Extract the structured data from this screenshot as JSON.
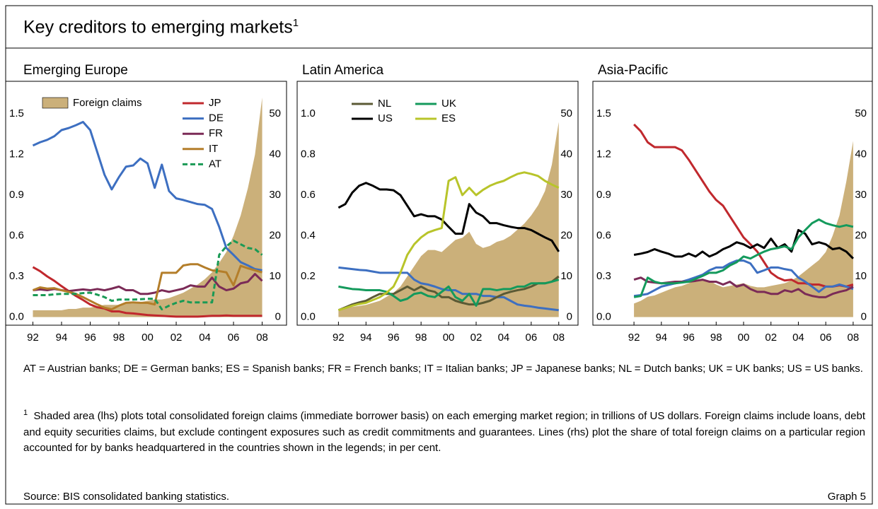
{
  "title": "Key creditors to emerging markets",
  "footnote_marker": "1",
  "chart_data": [
    {
      "type": "line",
      "title": "Emerging Europe",
      "x": [
        1992,
        1992.5,
        1993,
        1993.5,
        1994,
        1994.5,
        1995,
        1995.5,
        1996,
        1996.5,
        1997,
        1997.5,
        1998,
        1998.5,
        1999,
        1999.5,
        2000,
        2000.5,
        2001,
        2001.5,
        2002,
        2002.5,
        2003,
        2003.5,
        2004,
        2004.5,
        2005,
        2005.5,
        2006,
        2006.5,
        2007,
        2007.5,
        2008
      ],
      "xlim": [
        1990.1,
        2009.7
      ],
      "xticks": [
        {
          "value": 1992,
          "label": "92"
        },
        {
          "value": 1994,
          "label": "94"
        },
        {
          "value": 1996,
          "label": "96"
        },
        {
          "value": 1998,
          "label": "98"
        },
        {
          "value": 2000,
          "label": "00"
        },
        {
          "value": 2002,
          "label": "02"
        },
        {
          "value": 2004,
          "label": "04"
        },
        {
          "value": 2006,
          "label": "06"
        },
        {
          "value": 2008,
          "label": "08"
        }
      ],
      "ylim": [
        -0.06,
        1.74
      ],
      "yticks": [
        {
          "value": 0,
          "label": "0.0"
        },
        0.3,
        0.6,
        0.9,
        1.2,
        1.5
      ],
      "y2lim": [
        -2,
        58
      ],
      "y2ticks": [
        0,
        10,
        20,
        30,
        40,
        50
      ],
      "series": [
        {
          "name": "Foreign claims",
          "type": "area",
          "color": "#cbb07a",
          "values": [
            0.05,
            0.05,
            0.05,
            0.05,
            0.05,
            0.06,
            0.06,
            0.07,
            0.07,
            0.08,
            0.09,
            0.09,
            0.09,
            0.1,
            0.1,
            0.11,
            0.12,
            0.13,
            0.13,
            0.14,
            0.16,
            0.18,
            0.21,
            0.24,
            0.28,
            0.33,
            0.4,
            0.48,
            0.6,
            0.75,
            0.95,
            1.2,
            1.62
          ]
        },
        {
          "name": "JP",
          "axis": "y2",
          "color": "#c0282d",
          "values": [
            12.3,
            11.3,
            10,
            8.9,
            7.6,
            6.4,
            5.2,
            4.2,
            3.1,
            2.4,
            2.1,
            1.4,
            1.4,
            1,
            0.9,
            0.7,
            0.5,
            0.4,
            0.3,
            0.2,
            0.1,
            0.1,
            0.1,
            0.1,
            0.2,
            0.3,
            0.3,
            0.4,
            0.3,
            0.3,
            0.3,
            0.3,
            0.3
          ]
        },
        {
          "name": "DE",
          "axis": "y2",
          "color": "#3d6fc1",
          "values": [
            42.2,
            43,
            43.6,
            44.5,
            46,
            46.5,
            47.2,
            48,
            46,
            40.5,
            35,
            31.4,
            34.4,
            37,
            37.3,
            39,
            37.8,
            31.8,
            37.5,
            31,
            29.2,
            28.8,
            28.3,
            27.8,
            27.6,
            26.6,
            22.2,
            17,
            15.3,
            13.5,
            12.7,
            11.8,
            11.5
          ]
        },
        {
          "name": "FR",
          "axis": "y2",
          "color": "#7b2b57",
          "values": [
            6.6,
            6.8,
            6.6,
            6.9,
            6.6,
            6.4,
            6.6,
            6.8,
            6.6,
            6.9,
            6.6,
            7,
            7.5,
            6.6,
            6.6,
            5.7,
            5.7,
            6,
            6.6,
            6.2,
            6.6,
            7,
            7.8,
            7.5,
            7.5,
            9.7,
            7.5,
            6.6,
            7,
            8.3,
            8.7,
            10.6,
            8.9
          ]
        },
        {
          "name": "IT",
          "axis": "y2",
          "color": "#b47e2a",
          "values": [
            6.6,
            7.3,
            7,
            7.1,
            6.6,
            6.2,
            5.7,
            4.9,
            4,
            3.1,
            2.3,
            1.9,
            2.8,
            3.5,
            3.6,
            3.5,
            3.5,
            3.1,
            10.9,
            10.9,
            10.9,
            12.7,
            13,
            13,
            12.2,
            11.5,
            11.3,
            11,
            7.8,
            12.6,
            12,
            11.5,
            11
          ]
        },
        {
          "name": "AT",
          "axis": "y2",
          "color": "#1a9a55",
          "dash": true,
          "values": [
            5.4,
            5.4,
            5.4,
            5.6,
            5.7,
            5.7,
            5.7,
            5.9,
            6,
            5.5,
            4.9,
            4,
            4.3,
            4.3,
            4.3,
            4.4,
            4.5,
            4.5,
            1.9,
            2.8,
            3.5,
            4,
            3.6,
            3.6,
            3.6,
            3.6,
            15.3,
            17.4,
            18.8,
            17.9,
            17,
            16.7,
            15.3
          ]
        }
      ]
    },
    {
      "type": "line",
      "title": "Latin America",
      "x": [
        1992,
        1992.5,
        1993,
        1993.5,
        1994,
        1994.5,
        1995,
        1995.5,
        1996,
        1996.5,
        1997,
        1997.5,
        1998,
        1998.5,
        1999,
        1999.5,
        2000,
        2000.5,
        2001,
        2001.5,
        2002,
        2002.5,
        2003,
        2003.5,
        2004,
        2004.5,
        2005,
        2005.5,
        2006,
        2006.5,
        2007,
        2007.5,
        2008
      ],
      "xlim": [
        1989,
        2009.4
      ],
      "xticks": [
        {
          "value": 1992,
          "label": "92"
        },
        {
          "value": 1994,
          "label": "94"
        },
        {
          "value": 1996,
          "label": "96"
        },
        {
          "value": 1998,
          "label": "98"
        },
        {
          "value": 2000,
          "label": "00"
        },
        {
          "value": 2002,
          "label": "02"
        },
        {
          "value": 2004,
          "label": "04"
        },
        {
          "value": 2006,
          "label": "06"
        },
        {
          "value": 2008,
          "label": "08"
        }
      ],
      "ylim": [
        -0.04,
        1.16
      ],
      "yticks": [
        {
          "value": 0,
          "label": "0.0"
        },
        0.2,
        0.4,
        0.6,
        0.8,
        {
          "value": 1,
          "label": "1.0"
        }
      ],
      "y2lim": [
        -2,
        58
      ],
      "y2ticks": [
        0,
        10,
        20,
        30,
        40,
        50
      ],
      "series": [
        {
          "type": "area",
          "color": "#cbb07a",
          "values": [
            0.04,
            0.045,
            0.05,
            0.055,
            0.06,
            0.07,
            0.08,
            0.1,
            0.12,
            0.15,
            0.2,
            0.25,
            0.3,
            0.33,
            0.33,
            0.32,
            0.35,
            0.38,
            0.39,
            0.42,
            0.36,
            0.34,
            0.35,
            0.37,
            0.38,
            0.4,
            0.43,
            0.46,
            0.5,
            0.55,
            0.62,
            0.75,
            0.96
          ]
        },
        {
          "axis": "y2",
          "color": "#3d6fc1",
          "values": [
            12.2,
            12,
            11.8,
            11.6,
            11.5,
            11.2,
            10.9,
            10.9,
            10.9,
            10.9,
            10.9,
            9.2,
            8.3,
            8,
            7.5,
            6.9,
            6.6,
            6.6,
            5.7,
            5.7,
            5.7,
            5.2,
            5.2,
            4.9,
            4.9,
            4,
            3.1,
            2.8,
            2.6,
            2.3,
            2.1,
            1.9,
            1.7
          ]
        },
        {
          "name": "NL",
          "axis": "y2",
          "color": "#5b5a35",
          "values": [
            1.7,
            2.4,
            3.1,
            3.6,
            4,
            4.9,
            5.7,
            5.7,
            5.7,
            6.6,
            7.5,
            6.6,
            7.5,
            6.6,
            6.2,
            4.9,
            4.9,
            4,
            3.5,
            3.1,
            3.1,
            3.5,
            4,
            4.9,
            5.7,
            6.2,
            6.6,
            6.9,
            7.5,
            8.3,
            8.3,
            8.7,
            10
          ]
        },
        {
          "name": "UK",
          "axis": "y2",
          "color": "#149a5c",
          "values": [
            7.5,
            7.2,
            6.9,
            6.8,
            6.6,
            6.6,
            6.6,
            6.2,
            5.2,
            4,
            4.5,
            5.7,
            6,
            5.2,
            4.9,
            6.2,
            7.5,
            4.9,
            4,
            5.7,
            2.8,
            6.9,
            6.9,
            6.6,
            6.9,
            6.9,
            7.5,
            7.5,
            8.3,
            8.3,
            8.3,
            8.7,
            9.2
          ]
        },
        {
          "name": "US",
          "axis": "y2",
          "color": "#000000",
          "values": [
            26.9,
            27.8,
            30.6,
            32.3,
            33,
            32.3,
            31.4,
            31.4,
            31.2,
            30,
            27.4,
            24.8,
            25.3,
            24.8,
            24.8,
            24,
            22.2,
            20.5,
            20.5,
            27.8,
            25.7,
            24.8,
            23.1,
            23.1,
            22.6,
            22.2,
            21.9,
            21.9,
            21.4,
            20.5,
            19.6,
            18.8,
            16.1
          ]
        },
        {
          "name": "ES",
          "axis": "y2",
          "color": "#b8c42a",
          "values": [
            1.7,
            2.2,
            2.8,
            3.2,
            3.5,
            4.2,
            4.9,
            6,
            7.5,
            10.9,
            15.3,
            17.9,
            19.6,
            20.8,
            21.4,
            21.9,
            33.5,
            34.4,
            30,
            31.8,
            30,
            31.3,
            32.3,
            33,
            33.5,
            34.4,
            35.2,
            35.6,
            35.2,
            34.7,
            33.5,
            32.6,
            31.8
          ]
        }
      ]
    },
    {
      "type": "line",
      "title": "Asia-Pacific",
      "x": [
        1992,
        1992.5,
        1993,
        1993.5,
        1994,
        1994.5,
        1995,
        1995.5,
        1996,
        1996.5,
        1997,
        1997.5,
        1998,
        1998.5,
        1999,
        1999.5,
        2000,
        2000.5,
        2001,
        2001.5,
        2002,
        2002.5,
        2003,
        2003.5,
        2004,
        2004.5,
        2005,
        2005.5,
        2006,
        2006.5,
        2007,
        2007.5,
        2008
      ],
      "xlim": [
        1989,
        2009.4
      ],
      "xticks": [
        {
          "value": 1992,
          "label": "92"
        },
        {
          "value": 1994,
          "label": "94"
        },
        {
          "value": 1996,
          "label": "96"
        },
        {
          "value": 1998,
          "label": "98"
        },
        {
          "value": 2000,
          "label": "00"
        },
        {
          "value": 2002,
          "label": "02"
        },
        {
          "value": 2004,
          "label": "04"
        },
        {
          "value": 2006,
          "label": "06"
        },
        {
          "value": 2008,
          "label": "08"
        }
      ],
      "ylim": [
        -0.06,
        1.74
      ],
      "yticks": [
        {
          "value": 0,
          "label": "0.0"
        },
        0.3,
        0.6,
        0.9,
        1.2,
        1.5
      ],
      "y2lim": [
        -2,
        58
      ],
      "y2ticks": [
        0,
        10,
        20,
        30,
        40,
        50
      ],
      "series": [
        {
          "type": "area",
          "color": "#cbb07a",
          "values": [
            0.1,
            0.12,
            0.15,
            0.16,
            0.18,
            0.2,
            0.22,
            0.23,
            0.25,
            0.27,
            0.28,
            0.27,
            0.24,
            0.22,
            0.23,
            0.24,
            0.25,
            0.23,
            0.22,
            0.22,
            0.23,
            0.24,
            0.25,
            0.27,
            0.3,
            0.34,
            0.38,
            0.42,
            0.48,
            0.6,
            0.75,
            1,
            1.3
          ]
        },
        {
          "axis": "y2",
          "color": "#c0282d",
          "values": [
            47.4,
            45.7,
            43,
            41.8,
            41.8,
            41.8,
            41.8,
            41,
            38.7,
            36.1,
            33.5,
            30.9,
            28.8,
            27.4,
            24.8,
            22.2,
            19.6,
            17.9,
            16.1,
            13.5,
            10.9,
            9.7,
            9,
            9.2,
            8.3,
            8.3,
            8,
            8,
            7.5,
            7.5,
            7.8,
            7.5,
            8
          ]
        },
        {
          "axis": "y2",
          "color": "#000000",
          "values": [
            15.3,
            15.6,
            16,
            16.7,
            16.1,
            15.6,
            14.9,
            14.9,
            15.6,
            14.9,
            16.1,
            14.9,
            15.6,
            16.7,
            17.4,
            18.4,
            17.9,
            17,
            17.9,
            17,
            19.3,
            17,
            17.9,
            16.1,
            21.4,
            20.5,
            17.9,
            18.4,
            17.9,
            16.7,
            17,
            16.1,
            14.4
          ]
        },
        {
          "axis": "y2",
          "color": "#3d6fc1",
          "values": [
            5.2,
            5.4,
            5.7,
            6.6,
            7.5,
            7.9,
            8.3,
            8.7,
            9.2,
            9.8,
            10.4,
            11.5,
            12.2,
            12.2,
            13.2,
            13.9,
            13.9,
            13.2,
            10.9,
            11.5,
            12.2,
            12.2,
            11.8,
            11.5,
            9.7,
            8.7,
            7.5,
            6.2,
            7.5,
            7.5,
            8,
            7.5,
            6.9
          ]
        },
        {
          "axis": "y2",
          "color": "#7b2b57",
          "values": [
            9.2,
            9.7,
            8.7,
            8.5,
            8.3,
            8.5,
            8.7,
            8.7,
            8.7,
            8.9,
            9.2,
            8.7,
            8.7,
            8,
            8.7,
            7.5,
            8,
            6.9,
            6.2,
            6.2,
            5.7,
            5.7,
            6.6,
            6.2,
            6.9,
            5.7,
            5.2,
            4.9,
            4.9,
            5.7,
            6.2,
            6.6,
            7.5
          ]
        },
        {
          "axis": "y2",
          "color": "#149a5c",
          "values": [
            4.9,
            5.2,
            9.7,
            8.7,
            8.3,
            8.3,
            8.3,
            8.5,
            8.7,
            9.4,
            10.1,
            10.9,
            10.9,
            11.5,
            12.7,
            13.5,
            14.9,
            14.4,
            15.3,
            16.1,
            16.7,
            17,
            17.4,
            16.7,
            19.6,
            21.4,
            23.1,
            24,
            23.1,
            22.6,
            22.2,
            22.6,
            22.2
          ]
        }
      ]
    }
  ],
  "notes": "AT = Austrian banks; DE = German banks; ES = Spanish banks; FR = French banks; IT = Italian banks; JP = Japanese banks; NL = Dutch banks; UK = UK banks; US = US banks.",
  "footnote": "Shaded area (lhs) plots total consolidated foreign claims (immediate borrower basis) on each emerging market region; in trillions of US dollars. Foreign claims include loans, debt and equity securities claims, but exclude contingent exposures such as credit commitments and guarantees. Lines (rhs) plot the share of total foreign claims on a particular region accounted for by banks headquartered in the countries shown in the legends; in per cent.",
  "source": "Source: BIS consolidated banking statistics.",
  "graph_label": "Graph 5"
}
